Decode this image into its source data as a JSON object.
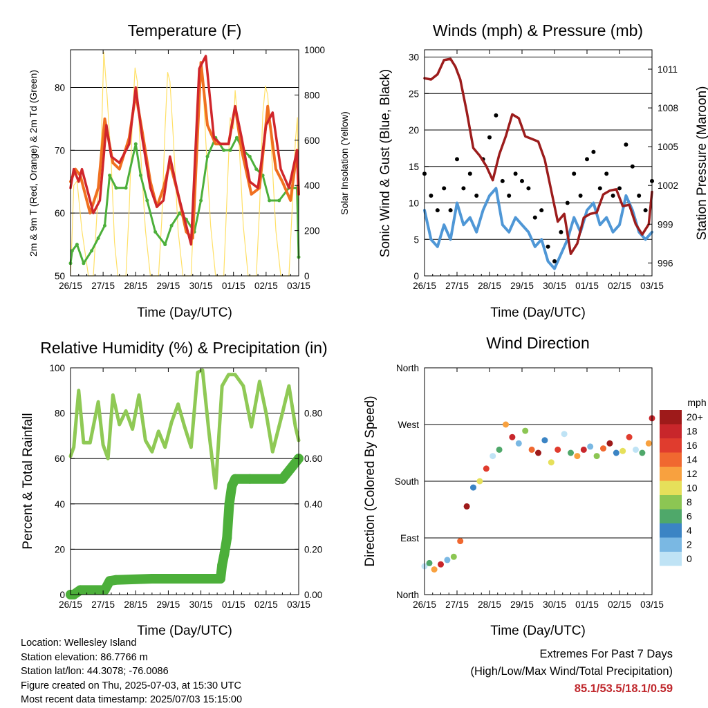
{
  "station": {
    "location": "Location: Wellesley Island",
    "elevation": "Station elevation: 86.7766 m",
    "latlon": "Station lat/lon: 44.3078; -76.0086",
    "created": "Figure created on Thu, 2025-07-03, at 15:30 UTC",
    "recent": "Most recent data timestamp: 2025/07/03 15:15:00"
  },
  "extremes": {
    "title": "Extremes For Past 7 Days",
    "subtitle": "(High/Low/Max Wind/Total Precipitation)",
    "values": "85.1/53.5/18.1/0.59",
    "value_color": "#c0282d"
  },
  "x_ticks": [
    "26/15",
    "27/15",
    "28/15",
    "29/15",
    "30/15",
    "01/15",
    "02/15",
    "03/15"
  ],
  "x_label": "Time (Day/UTC)",
  "chart_data": [
    {
      "type": "line",
      "title": "Temperature (F)",
      "xlabel": "Time (Day/UTC)",
      "ylabel": "2m & 9m T (Red, Orange) & 2m Td (Green)",
      "ylabel_right": "Solar Insolation (Yellow)",
      "ylim": [
        50,
        86
      ],
      "yticks": [
        50,
        60,
        70,
        80
      ],
      "ylim_right": [
        0,
        1000
      ],
      "yticks_right": [
        0,
        200,
        400,
        600,
        800,
        1000
      ],
      "x_unit": "day index from 26/15",
      "xlim": [
        0,
        7
      ],
      "colors": {
        "temp2m": "#d0262b",
        "temp9m": "#f07020",
        "dewpoint": "#4caf3a",
        "solar": "#ffe066"
      },
      "series": [
        {
          "key": "temp9m",
          "x": [
            0,
            0.15,
            0.3,
            0.6,
            0.85,
            1.05,
            1.3,
            1.5,
            1.8,
            2.0,
            2.2,
            2.45,
            2.65,
            2.85,
            3.05,
            3.3,
            3.55,
            3.75,
            4.0,
            4.2,
            4.45,
            4.65,
            4.85,
            5.05,
            5.25,
            5.55,
            5.8,
            6.05,
            6.3,
            6.5,
            6.75,
            6.95,
            7.0
          ],
          "y": [
            65,
            67,
            66,
            60,
            64,
            75,
            68,
            67,
            72,
            79,
            73,
            65,
            61,
            64,
            68,
            63,
            57,
            56,
            84,
            74,
            71,
            71,
            71,
            77,
            70,
            63,
            64,
            77,
            67,
            65,
            62,
            70,
            63
          ]
        },
        {
          "key": "temp2m",
          "x": [
            0,
            0.1,
            0.25,
            0.35,
            0.5,
            0.7,
            0.9,
            1.1,
            1.25,
            1.5,
            1.8,
            2.0,
            2.2,
            2.45,
            2.65,
            2.85,
            3.05,
            3.3,
            3.5,
            3.7,
            3.95,
            4.15,
            4.4,
            4.6,
            4.85,
            5.05,
            5.25,
            5.5,
            5.75,
            6.0,
            6.2,
            6.45,
            6.7,
            6.95,
            7.0
          ],
          "y": [
            64,
            67,
            65,
            67,
            64,
            60,
            62,
            74,
            69,
            68,
            71,
            80,
            72,
            64,
            61,
            62,
            69,
            63,
            59,
            55,
            83,
            85,
            72,
            71,
            71,
            77,
            72,
            65,
            64,
            74,
            76,
            67,
            64,
            70,
            63
          ]
        },
        {
          "key": "dewpoint",
          "x": [
            0,
            0.05,
            0.2,
            0.4,
            0.65,
            0.85,
            1.05,
            1.2,
            1.4,
            1.7,
            2.0,
            2.15,
            2.35,
            2.6,
            2.9,
            3.1,
            3.35,
            3.55,
            3.8,
            4.0,
            4.2,
            4.45,
            4.7,
            4.9,
            5.1,
            5.3,
            5.5,
            5.7,
            5.9,
            6.1,
            6.4,
            6.7,
            6.95,
            7.0
          ],
          "y": [
            52,
            54,
            55,
            52,
            54,
            56,
            58,
            66,
            64,
            64,
            71,
            66,
            62,
            57,
            55,
            58,
            60,
            59,
            57,
            62,
            69,
            72,
            70,
            70,
            72,
            70,
            69,
            67,
            66,
            62,
            62,
            64,
            64,
            53
          ]
        },
        {
          "key": "solar",
          "x": [
            0,
            0.04,
            0.1,
            0.2,
            0.35,
            0.55,
            0.7,
            0.82,
            0.95,
            1.02,
            1.12,
            1.25,
            1.35,
            1.45,
            1.7,
            1.8,
            1.9,
            1.98,
            2.05,
            2.12,
            2.3,
            2.45,
            2.7,
            2.8,
            2.9,
            2.98,
            3.05,
            3.15,
            3.3,
            3.45,
            3.7,
            3.8,
            3.9,
            3.98,
            4.05,
            4.15,
            4.3,
            4.45,
            4.7,
            4.8,
            4.9,
            5.0,
            5.05,
            5.15,
            5.3,
            5.45,
            5.7,
            5.8,
            5.9,
            5.98,
            6.05,
            6.15,
            6.3,
            6.45,
            6.7,
            6.8,
            6.9,
            6.96,
            7.0
          ],
          "y": [
            0,
            150,
            400,
            420,
            200,
            0,
            0,
            300,
            620,
            990,
            800,
            500,
            150,
            0,
            0,
            300,
            700,
            920,
            860,
            620,
            200,
            0,
            0,
            250,
            650,
            900,
            860,
            620,
            200,
            0,
            0,
            350,
            780,
            920,
            890,
            600,
            220,
            0,
            0,
            350,
            700,
            650,
            820,
            650,
            220,
            0,
            0,
            300,
            720,
            840,
            800,
            600,
            200,
            0,
            0,
            300,
            600,
            700,
            320
          ]
        }
      ]
    },
    {
      "type": "scatter",
      "title": "Winds (mph) & Pressure (mb)",
      "xlabel": "Time (Day/UTC)",
      "ylabel": "Sonic Wind & Gust (Blue, Black)",
      "ylabel_right": "Station Pressure (Maroon)",
      "ylim": [
        0,
        31
      ],
      "yticks": [
        0,
        5,
        10,
        15,
        20,
        25,
        30
      ],
      "ylim_right": [
        995.0,
        1012.5
      ],
      "yticks_right": [
        996,
        999,
        1002,
        1005,
        1008,
        1011
      ],
      "x_unit": "day index from 26/15",
      "xlim": [
        0,
        7
      ],
      "colors": {
        "wind": "#4f97d6",
        "gust": "#000000",
        "pressure": "#9c1c1c"
      },
      "series": [
        {
          "key": "wind",
          "x": [
            0,
            0.2,
            0.4,
            0.6,
            0.8,
            1.0,
            1.2,
            1.4,
            1.6,
            1.8,
            2.0,
            2.2,
            2.4,
            2.6,
            2.8,
            3.0,
            3.2,
            3.4,
            3.6,
            3.8,
            4.0,
            4.2,
            4.4,
            4.6,
            4.8,
            5.0,
            5.2,
            5.4,
            5.6,
            5.8,
            6.0,
            6.2,
            6.4,
            6.6,
            6.8,
            7.0
          ],
          "y": [
            9,
            5,
            4,
            7,
            5,
            10,
            7,
            8,
            6,
            9,
            11,
            12,
            7,
            6,
            8,
            7,
            6,
            4,
            5,
            2,
            1,
            3,
            5,
            8,
            6,
            9,
            10,
            7,
            8,
            6,
            7,
            11,
            9,
            6,
            5,
            6
          ]
        },
        {
          "key": "gust",
          "x": [
            0,
            0.2,
            0.4,
            0.6,
            0.8,
            1.0,
            1.2,
            1.4,
            1.6,
            1.8,
            2.0,
            2.2,
            2.4,
            2.6,
            2.8,
            3.0,
            3.2,
            3.4,
            3.6,
            3.8,
            4.0,
            4.2,
            4.4,
            4.6,
            4.8,
            5.0,
            5.2,
            5.4,
            5.6,
            5.8,
            6.0,
            6.2,
            6.4,
            6.6,
            6.8,
            7.0
          ],
          "y": [
            14,
            11,
            9,
            12,
            9,
            16,
            12,
            14,
            11,
            16,
            19,
            22,
            13,
            11,
            14,
            13,
            12,
            8,
            9,
            4,
            2,
            6,
            10,
            14,
            11,
            16,
            17,
            12,
            14,
            11,
            12,
            18,
            15,
            11,
            9,
            13
          ]
        },
        {
          "key": "pressure",
          "x": [
            0,
            0.2,
            0.4,
            0.6,
            0.8,
            0.95,
            1.1,
            1.3,
            1.5,
            1.7,
            1.9,
            2.1,
            2.3,
            2.5,
            2.7,
            2.9,
            3.1,
            3.3,
            3.5,
            3.7,
            3.9,
            4.1,
            4.3,
            4.5,
            4.7,
            4.9,
            5.1,
            5.3,
            5.5,
            5.7,
            5.9,
            6.1,
            6.3,
            6.5,
            6.7,
            6.9,
            7.0
          ],
          "y": [
            1010.3,
            1010.2,
            1010.6,
            1011.7,
            1011.8,
            1011.2,
            1010.2,
            1007.7,
            1004.9,
            1004.3,
            1003.5,
            1002.4,
            1004.4,
            1005.8,
            1007.5,
            1007.2,
            1005.8,
            1005.6,
            1005.4,
            1004.0,
            1001.6,
            999.2,
            999.8,
            996.7,
            997.5,
            999.5,
            999.8,
            999.9,
            1001.3,
            1001.6,
            1001.7,
            1000.4,
            1000.5,
            999.0,
            998.2,
            999.0,
            1001.5
          ]
        }
      ]
    },
    {
      "type": "line",
      "title": "Relative Humidity (%) & Precipitation (in)",
      "xlabel": "Time (Day/UTC)",
      "ylabel": "Percent & Total Rainfall",
      "ylim": [
        0,
        100
      ],
      "yticks": [
        0,
        20,
        40,
        60,
        80,
        100
      ],
      "ylim_right": [
        0,
        1.0
      ],
      "yticks_right": [
        "0.00",
        "0.20",
        "0.40",
        "0.60",
        "0.80"
      ],
      "x_unit": "day index from 26/15",
      "xlim": [
        0,
        7
      ],
      "colors": {
        "rh": "#8fc955",
        "precip": "#4caf3a"
      },
      "series": [
        {
          "key": "rh",
          "x": [
            0,
            0.1,
            0.25,
            0.4,
            0.6,
            0.85,
            1.0,
            1.15,
            1.3,
            1.5,
            1.7,
            1.9,
            2.1,
            2.3,
            2.5,
            2.7,
            2.9,
            3.1,
            3.3,
            3.5,
            3.7,
            3.9,
            4.05,
            4.25,
            4.45,
            4.65,
            4.85,
            5.05,
            5.3,
            5.55,
            5.8,
            6.0,
            6.2,
            6.5,
            6.7,
            6.9,
            7.0
          ],
          "y": [
            61,
            65,
            90,
            67,
            67,
            85,
            66,
            60,
            88,
            75,
            81,
            73,
            88,
            68,
            63,
            72,
            65,
            76,
            84,
            74,
            65,
            98,
            99,
            71,
            47,
            92,
            97,
            97,
            92,
            74,
            94,
            80,
            63,
            80,
            92,
            74,
            68
          ]
        },
        {
          "key": "precip",
          "x": [
            0,
            0.1,
            0.3,
            1.05,
            1.2,
            1.4,
            2.5,
            3.5,
            4.6,
            4.65,
            4.72,
            4.8,
            4.87,
            4.95,
            5.05,
            5.5,
            6.5,
            7.0
          ],
          "y": [
            0.0,
            0.0,
            0.02,
            0.02,
            0.06,
            0.065,
            0.07,
            0.07,
            0.07,
            0.13,
            0.18,
            0.25,
            0.4,
            0.48,
            0.51,
            0.51,
            0.51,
            0.6
          ]
        }
      ]
    },
    {
      "type": "scatter",
      "title": "Wind Direction",
      "xlabel": "Time (Day/UTC)",
      "ylabel": "Direction (Colored By Speed)",
      "ylim": [
        0,
        360
      ],
      "yticks": [
        "North",
        "East",
        "South",
        "West",
        "North"
      ],
      "x_unit": "day index from 26/15",
      "xlim": [
        0,
        7
      ],
      "colorbar": {
        "unit": "mph",
        "labels": [
          "20+",
          "18",
          "16",
          "14",
          "12",
          "10",
          "8",
          "6",
          "4",
          "2",
          "0"
        ],
        "colors": [
          "#9e1a1a",
          "#c8262b",
          "#e03c2e",
          "#f06830",
          "#f8a13f",
          "#e6e05a",
          "#8cc653",
          "#4fa86a",
          "#3b84c4",
          "#7ab8e3",
          "#bfe3f5"
        ]
      },
      "series": [
        {
          "name": "direction",
          "x": [
            0,
            0.15,
            0.3,
            0.5,
            0.7,
            0.9,
            1.1,
            1.3,
            1.5,
            1.7,
            1.9,
            2.1,
            2.3,
            2.5,
            2.7,
            2.9,
            3.1,
            3.3,
            3.5,
            3.7,
            3.9,
            4.1,
            4.3,
            4.5,
            4.7,
            4.9,
            5.1,
            5.3,
            5.5,
            5.7,
            5.9,
            6.1,
            6.3,
            6.5,
            6.7,
            6.9,
            7.0
          ],
          "y": [
            45,
            50,
            40,
            48,
            55,
            60,
            85,
            140,
            170,
            180,
            200,
            220,
            230,
            270,
            250,
            240,
            260,
            230,
            225,
            245,
            210,
            230,
            255,
            225,
            220,
            230,
            235,
            220,
            232,
            240,
            225,
            228,
            250,
            230,
            225,
            240,
            280
          ]
        }
      ]
    }
  ]
}
